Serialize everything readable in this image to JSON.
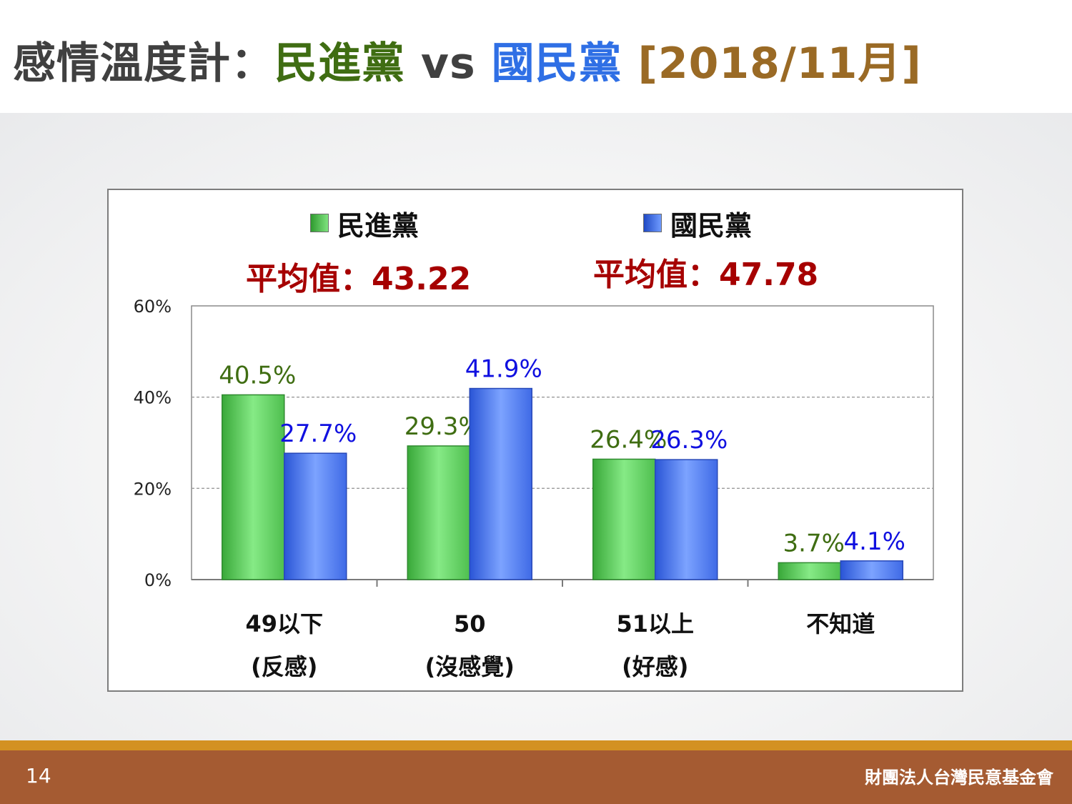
{
  "slide": {
    "title_prefix": "感情溫度計：",
    "title_party_a": "民進黨",
    "title_vs": " vs ",
    "title_party_b": "國民黨",
    "title_date": " [2018/11月]",
    "page_number": "14",
    "organization": "財團法人台灣民意基金會"
  },
  "averages": {
    "dpp": "平均值：43.22",
    "kmt": "平均值：47.78"
  },
  "colors": {
    "dpp": "#4fc04f",
    "kmt": "#3b68e8",
    "dpp_label": "#3f6d12",
    "kmt_label": "#1010e0",
    "average_text": "#a60000"
  },
  "chart_data": {
    "type": "bar",
    "categories": [
      "49以下",
      "50",
      "51以上",
      "不知道"
    ],
    "category_sublabels": [
      "(反感)",
      "(沒感覺)",
      "(好感)",
      ""
    ],
    "series": [
      {
        "name": "民進黨",
        "values": [
          40.5,
          29.3,
          26.4,
          3.7
        ],
        "labels": [
          "40.5%",
          "29.3%",
          "26.4%",
          "3.7%"
        ]
      },
      {
        "name": "國民黨",
        "values": [
          27.7,
          41.9,
          26.3,
          4.1
        ],
        "labels": [
          "27.7%",
          "41.9%",
          "26.3%",
          "4.1%"
        ]
      }
    ],
    "ylim": [
      0,
      60
    ],
    "yticks": [
      0,
      20,
      40,
      60
    ],
    "ytick_labels": [
      "0%",
      "20%",
      "40%",
      "60%"
    ],
    "grid": true,
    "legend_position": "top"
  }
}
